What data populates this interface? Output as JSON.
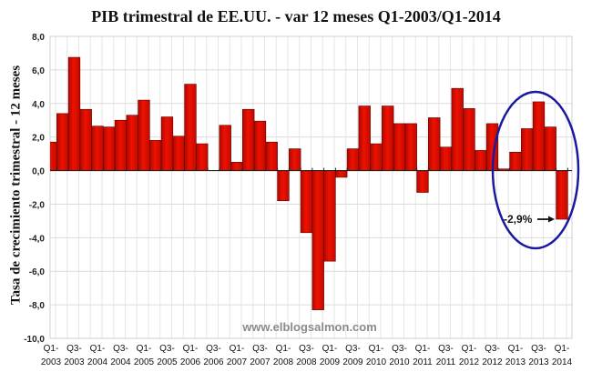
{
  "chart_data": {
    "type": "bar",
    "title": "PIB trimestral de EE.UU. - var 12 meses Q1-2003/Q1-2014",
    "xlabel": "",
    "ylabel": "Tasa de crecimiento trimestral - 12 meses",
    "ylim": [
      -10,
      8
    ],
    "yticks": [
      "8,0",
      "6,0",
      "4,0",
      "2,0",
      "0,0",
      "-2,0",
      "-4,0",
      "-6,0",
      "-8,0",
      "-10,0"
    ],
    "ytick_values": [
      8,
      6,
      4,
      2,
      0,
      -2,
      -4,
      -6,
      -8,
      -10
    ],
    "grid": true,
    "categories": [
      "Q1-2003",
      "Q2-2003",
      "Q3-2003",
      "Q4-2003",
      "Q1-2004",
      "Q2-2004",
      "Q3-2004",
      "Q4-2004",
      "Q1-2005",
      "Q2-2005",
      "Q3-2005",
      "Q4-2005",
      "Q1-2006",
      "Q2-2006",
      "Q3-2006",
      "Q4-2006",
      "Q1-2007",
      "Q2-2007",
      "Q3-2007",
      "Q4-2007",
      "Q1-2008",
      "Q2-2008",
      "Q3-2008",
      "Q4-2008",
      "Q1-2009",
      "Q2-2009",
      "Q3-2009",
      "Q4-2009",
      "Q1-2010",
      "Q2-2010",
      "Q3-2010",
      "Q4-2010",
      "Q1-2011",
      "Q2-2011",
      "Q3-2011",
      "Q4-2011",
      "Q1-2012",
      "Q2-2012",
      "Q3-2012",
      "Q4-2012",
      "Q1-2013",
      "Q2-2013",
      "Q3-2013",
      "Q4-2013",
      "Q1-2014"
    ],
    "xtick_labels": [
      {
        "q": "Q1-",
        "y": "2003"
      },
      {
        "q": "Q3-",
        "y": "2003"
      },
      {
        "q": "Q1-",
        "y": "2004"
      },
      {
        "q": "Q3-",
        "y": "2004"
      },
      {
        "q": "Q1-",
        "y": "2005"
      },
      {
        "q": "Q3-",
        "y": "2005"
      },
      {
        "q": "Q1-",
        "y": "2006"
      },
      {
        "q": "Q3-",
        "y": "2006"
      },
      {
        "q": "Q1-",
        "y": "2007"
      },
      {
        "q": "Q3-",
        "y": "2007"
      },
      {
        "q": "Q1-",
        "y": "2008"
      },
      {
        "q": "Q3-",
        "y": "2008"
      },
      {
        "q": "Q1-",
        "y": "2009"
      },
      {
        "q": "Q3-",
        "y": "2009"
      },
      {
        "q": "Q1-",
        "y": "2010"
      },
      {
        "q": "Q3-",
        "y": "2010"
      },
      {
        "q": "Q1-",
        "y": "2011"
      },
      {
        "q": "Q3-",
        "y": "2011"
      },
      {
        "q": "Q1-",
        "y": "2012"
      },
      {
        "q": "Q3-",
        "y": "2012"
      },
      {
        "q": "Q1-",
        "y": "2013"
      },
      {
        "q": "Q3-",
        "y": "2013"
      },
      {
        "q": "Q1-",
        "y": "2014"
      }
    ],
    "values": [
      1.7,
      3.4,
      6.75,
      3.65,
      2.65,
      2.6,
      3.0,
      3.3,
      4.2,
      1.8,
      3.2,
      2.05,
      5.15,
      1.6,
      0.0,
      2.7,
      0.5,
      3.65,
      2.95,
      1.7,
      -1.8,
      1.3,
      -3.7,
      -8.3,
      -5.4,
      -0.4,
      1.3,
      3.85,
      1.6,
      3.85,
      2.8,
      2.8,
      -1.3,
      3.15,
      1.4,
      4.9,
      3.7,
      1.2,
      2.8,
      0.1,
      1.1,
      2.5,
      4.1,
      2.6,
      -2.9
    ],
    "bar_color": "#ee1100",
    "annotation": {
      "text": "-2,9%",
      "target": "Q1-2014"
    },
    "highlight_ellipse": {
      "from": "Q3-2012",
      "to": "Q1-2014",
      "color": "#1a1aa0"
    },
    "watermark": "www.elblogsalmon.com"
  }
}
